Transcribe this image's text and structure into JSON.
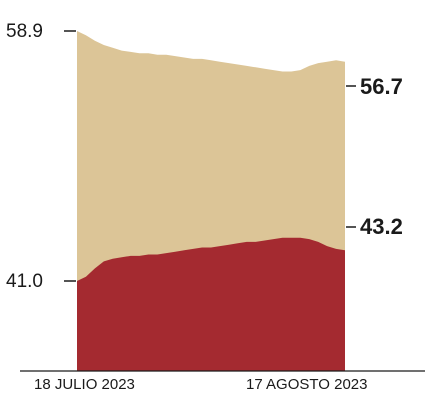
{
  "chart_data": {
    "type": "area",
    "title": "",
    "xlabel": "",
    "ylabel": "",
    "x_labels": [
      "18 JULIO 2023",
      "17 AGOSTO 2023"
    ],
    "y_ticks": [
      {
        "value": 58.9,
        "label": "58.9"
      },
      {
        "value": 41.0,
        "label": "41.0"
      }
    ],
    "x": [
      0,
      1,
      2,
      3,
      4,
      5,
      6,
      7,
      8,
      9,
      10,
      11,
      12,
      13,
      14,
      15,
      16,
      17,
      18,
      19,
      20,
      21,
      22,
      23,
      24,
      25,
      26,
      27,
      28,
      29,
      30
    ],
    "series": [
      {
        "color": "#a42a30",
        "end_label": "43.2",
        "values": [
          41.0,
          41.3,
          41.9,
          42.4,
          42.6,
          42.7,
          42.8,
          42.8,
          42.9,
          42.9,
          43.0,
          43.1,
          43.2,
          43.3,
          43.4,
          43.4,
          43.5,
          43.6,
          43.7,
          43.8,
          43.8,
          43.9,
          44.0,
          44.1,
          44.1,
          44.1,
          44.0,
          43.8,
          43.5,
          43.3,
          43.2
        ]
      },
      {
        "color": "#dcc597",
        "end_label": "56.7",
        "values": [
          58.9,
          58.6,
          58.2,
          57.9,
          57.7,
          57.5,
          57.4,
          57.3,
          57.3,
          57.2,
          57.2,
          57.1,
          57.0,
          56.9,
          56.9,
          56.8,
          56.7,
          56.6,
          56.5,
          56.4,
          56.3,
          56.2,
          56.1,
          56.0,
          56.0,
          56.1,
          56.4,
          56.6,
          56.7,
          56.8,
          56.7
        ]
      }
    ]
  }
}
